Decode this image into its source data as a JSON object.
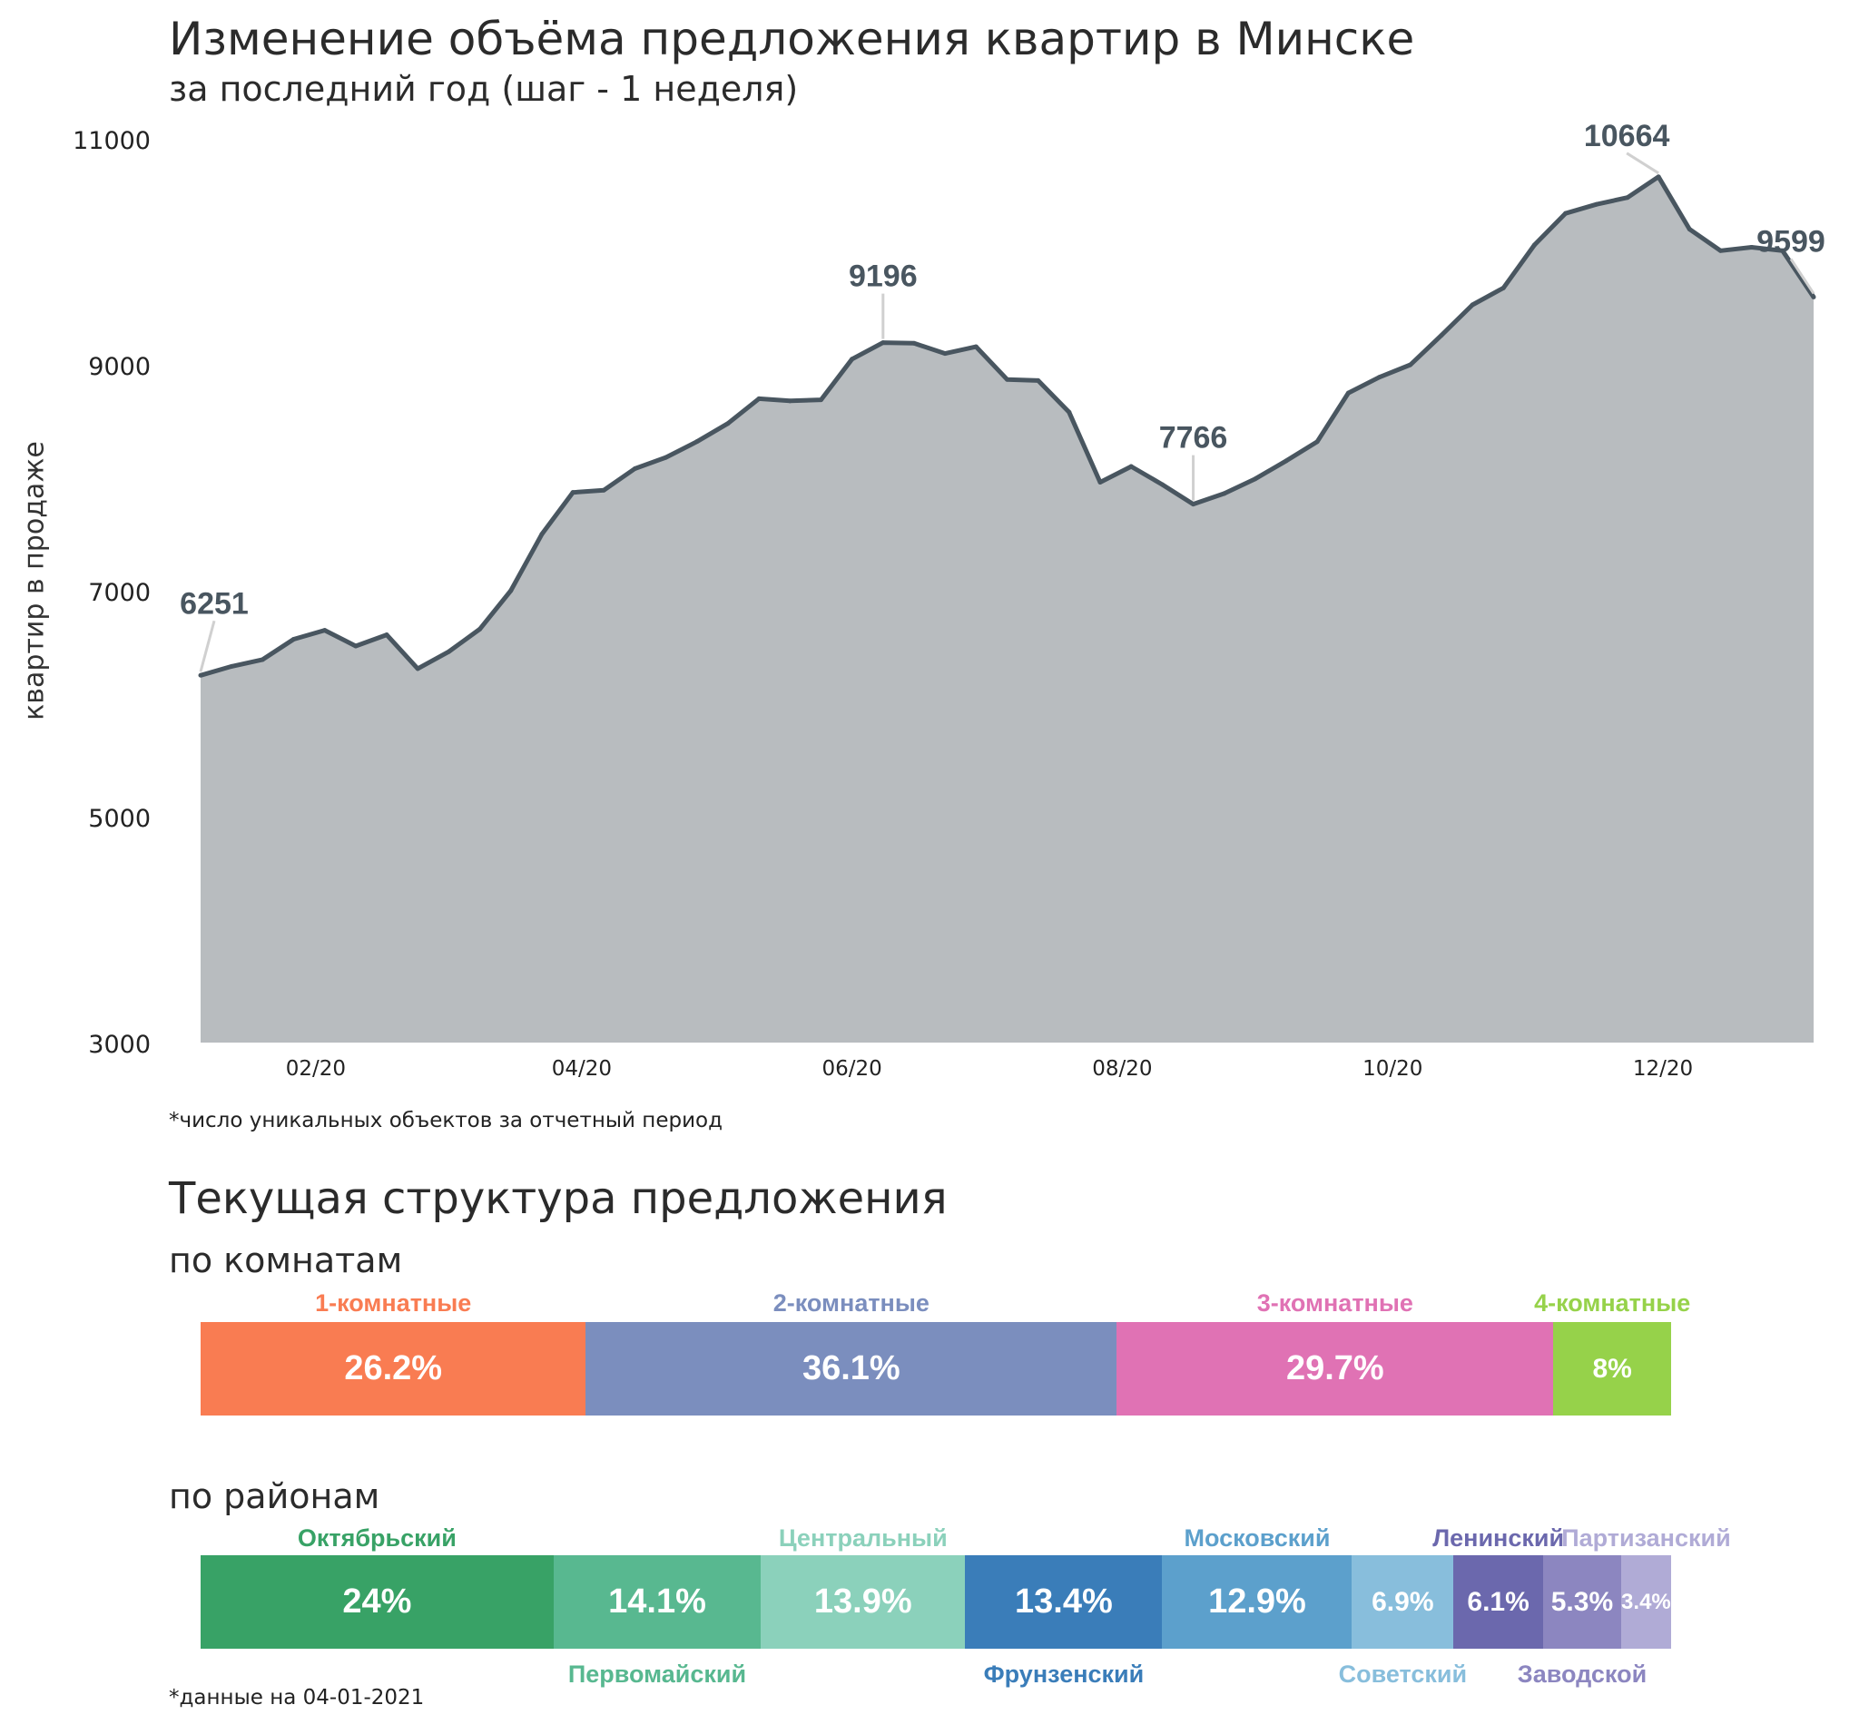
{
  "title": "Изменение объёма предложения квартир в Минске",
  "subtitle": "за последний год (шаг - 1 неделя)",
  "chart_data": {
    "type": "area",
    "ylabel": "квартир в продаже",
    "ylim": [
      3000,
      11000
    ],
    "yticks": [
      3000,
      5000,
      7000,
      9000,
      11000
    ],
    "xticks": [
      {
        "label": "02/20",
        "date": "2020-02-01"
      },
      {
        "label": "04/20",
        "date": "2020-04-01"
      },
      {
        "label": "06/20",
        "date": "2020-06-01"
      },
      {
        "label": "08/20",
        "date": "2020-08-01"
      },
      {
        "label": "10/20",
        "date": "2020-10-01"
      },
      {
        "label": "12/20",
        "date": "2020-12-01"
      }
    ],
    "x": [
      "2020-01-06",
      "2020-01-13",
      "2020-01-20",
      "2020-01-27",
      "2020-02-03",
      "2020-02-10",
      "2020-02-17",
      "2020-02-24",
      "2020-03-02",
      "2020-03-09",
      "2020-03-16",
      "2020-03-23",
      "2020-03-30",
      "2020-04-06",
      "2020-04-13",
      "2020-04-20",
      "2020-04-27",
      "2020-05-04",
      "2020-05-11",
      "2020-05-18",
      "2020-05-25",
      "2020-06-01",
      "2020-06-08",
      "2020-06-15",
      "2020-06-22",
      "2020-06-29",
      "2020-07-06",
      "2020-07-13",
      "2020-07-20",
      "2020-07-27",
      "2020-08-03",
      "2020-08-10",
      "2020-08-17",
      "2020-08-24",
      "2020-08-31",
      "2020-09-07",
      "2020-09-14",
      "2020-09-21",
      "2020-09-28",
      "2020-10-05",
      "2020-10-12",
      "2020-10-19",
      "2020-10-26",
      "2020-11-02",
      "2020-11-09",
      "2020-11-16",
      "2020-11-23",
      "2020-11-30",
      "2020-12-07",
      "2020-12-14",
      "2020-12-21",
      "2020-12-28",
      "2021-01-04"
    ],
    "values": [
      6251,
      6330,
      6390,
      6570,
      6650,
      6510,
      6610,
      6310,
      6460,
      6660,
      7000,
      7500,
      7870,
      7890,
      8080,
      8180,
      8320,
      8480,
      8700,
      8680,
      8690,
      9050,
      9196,
      9190,
      9100,
      9160,
      8870,
      8860,
      8580,
      7960,
      8100,
      7940,
      7766,
      7860,
      7990,
      8150,
      8320,
      8750,
      8890,
      9000,
      9260,
      9530,
      9680,
      10060,
      10340,
      10420,
      10480,
      10664,
      10200,
      10010,
      10040,
      10010,
      9599
    ],
    "annotations": [
      {
        "date": "2020-01-06",
        "value": 6251,
        "label": "6251"
      },
      {
        "date": "2020-06-08",
        "value": 9196,
        "label": "9196"
      },
      {
        "date": "2020-08-17",
        "value": 7766,
        "label": "7766"
      },
      {
        "date": "2020-11-30",
        "value": 10664,
        "label": "10664"
      },
      {
        "date": "2021-01-04",
        "value": 9599,
        "label": "9599"
      }
    ],
    "fill_color": "#b8bcbf",
    "line_color": "#495660",
    "grid": false
  },
  "footnote1": "*число уникальных объектов за отчетный период",
  "section_title": "Текущая структура предложения",
  "rooms": {
    "title": "по комнатам",
    "segments": [
      {
        "label": "1-комнатные",
        "pct": 26.2,
        "text": "26.2%",
        "color": "#f97c52"
      },
      {
        "label": "2-комнатные",
        "pct": 36.1,
        "text": "36.1%",
        "color": "#7b8ebe"
      },
      {
        "label": "3-комнатные",
        "pct": 29.7,
        "text": "29.7%",
        "color": "#e072b4"
      },
      {
        "label": "4-комнатные",
        "pct": 8.0,
        "text": "8%",
        "color": "#96d24a"
      }
    ]
  },
  "districts": {
    "title": "по районам",
    "segments": [
      {
        "label": "Октябрьский",
        "pct": 24.0,
        "text": "24%",
        "color": "#38a266",
        "label_pos": "top"
      },
      {
        "label": "Первомайский",
        "pct": 14.1,
        "text": "14.1%",
        "color": "#58b890",
        "label_pos": "bottom"
      },
      {
        "label": "Центральный",
        "pct": 13.9,
        "text": "13.9%",
        "color": "#8bd1bb",
        "label_pos": "top"
      },
      {
        "label": "Фрунзенский",
        "pct": 13.4,
        "text": "13.4%",
        "color": "#3a7db9",
        "label_pos": "bottom"
      },
      {
        "label": "Московский",
        "pct": 12.9,
        "text": "12.9%",
        "color": "#5ca0cc",
        "label_pos": "top"
      },
      {
        "label": "Советский",
        "pct": 6.9,
        "text": "6.9%",
        "color": "#88bedc",
        "label_pos": "bottom"
      },
      {
        "label": "Ленинский",
        "pct": 6.1,
        "text": "6.1%",
        "color": "#6b68ad",
        "label_pos": "top"
      },
      {
        "label": "Заводской",
        "pct": 5.3,
        "text": "5.3%",
        "color": "#8c86c0",
        "label_pos": "bottom"
      },
      {
        "label": "Партизанский",
        "pct": 3.4,
        "text": "3.4%",
        "color": "#b0abd6",
        "label_pos": "top"
      }
    ]
  },
  "footnote2": "*данные на 04-01-2021"
}
